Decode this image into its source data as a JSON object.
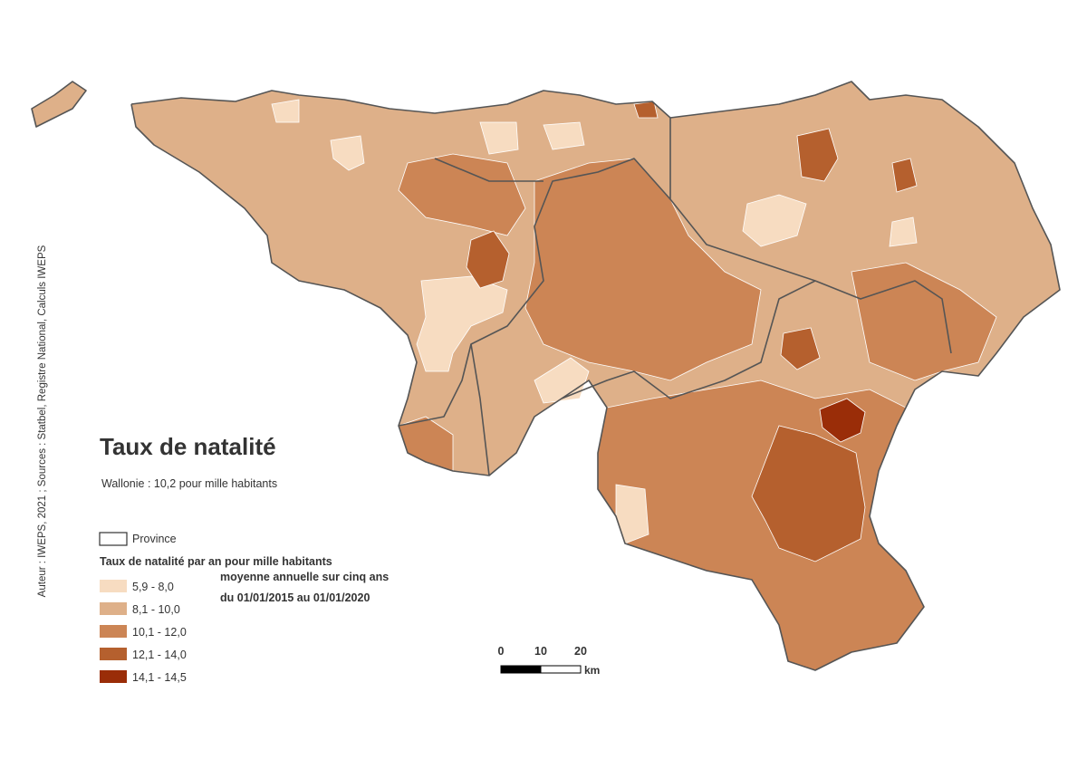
{
  "title": "Taux de natalité",
  "subtitle": "Wallonie : 10,2 pour mille habitants",
  "credit": "Auteur : IWEPS, 2021 ; Sources : Statbel, Registre National, Calculs IWEPS",
  "legend": {
    "province": "Province",
    "heading": "Taux de natalité par an pour mille habitants",
    "note": [
      "moyenne annuelle sur cinq ans",
      "du 01/01/2015 au 01/01/2020"
    ],
    "classes": [
      {
        "label": "5,9 - 8,0",
        "color": "#f7dcc1"
      },
      {
        "label": "8,1 - 10,0",
        "color": "#deb089"
      },
      {
        "label": "10,1 - 12,0",
        "color": "#cc8555"
      },
      {
        "label": "12,1 - 14,0",
        "color": "#b5602e"
      },
      {
        "label": "14,1 - 14,5",
        "color": "#9a2d08"
      }
    ]
  },
  "scale": {
    "ticks": [
      0,
      10,
      20
    ],
    "unit": "km"
  }
}
